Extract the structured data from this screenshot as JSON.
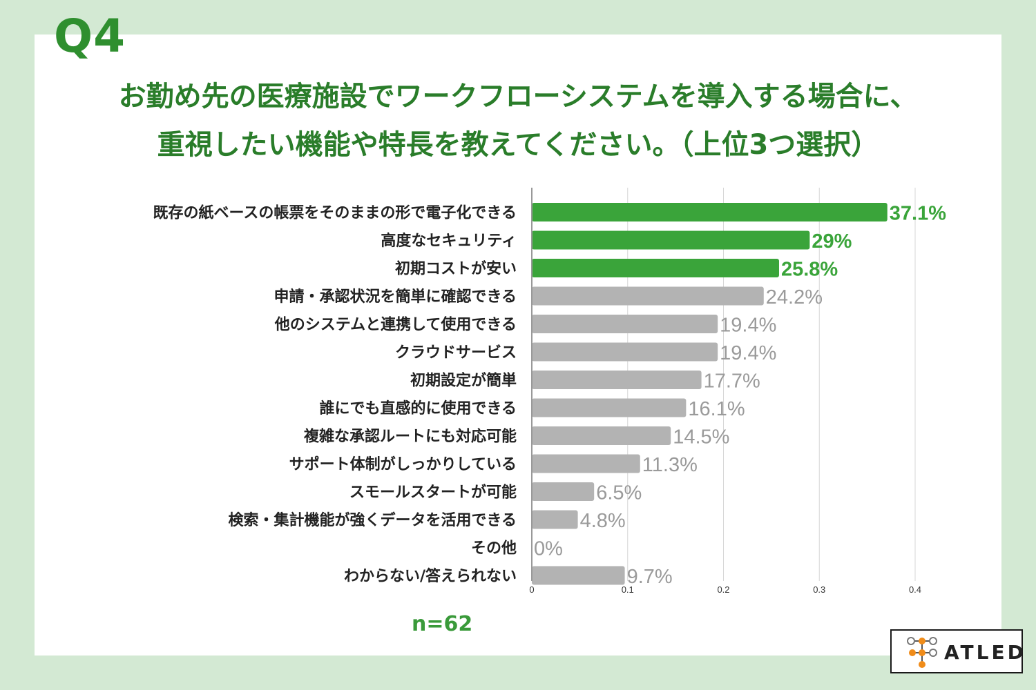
{
  "header": {
    "question": "Q4",
    "title_line1": "お勤め先の医療施設でワークフローシステムを導入する場合に、",
    "title_line2": "重視したい機能や特長を教えてください。（上位3つ選択）"
  },
  "sample": "n=62",
  "logo": {
    "text": "ATLED",
    "icon": "node-tree-icon"
  },
  "colors": {
    "highlight": "#3aa43a",
    "normal": "#b3b3b3",
    "highlight_label": "#3aa43a",
    "normal_label": "#9a9a9a",
    "title": "#2a7d2a",
    "frame": "#d3e9d3"
  },
  "chart_data": {
    "type": "bar",
    "orientation": "horizontal",
    "categories": [
      "既存の紙ベースの帳票をそのままの形で電子化できる",
      "高度なセキュリティ",
      "初期コストが安い",
      "申請・承認状況を簡単に確認できる",
      "他のシステムと連携して使用できる",
      "クラウドサービス",
      "初期設定が簡単",
      "誰にでも直感的に使用できる",
      "複雑な承認ルートにも対応可能",
      "サポート体制がしっかりしている",
      "スモールスタートが可能",
      "検索・集計機能が強くデータを活用できる",
      "その他",
      "わからない/答えられない"
    ],
    "values": [
      0.371,
      0.29,
      0.258,
      0.242,
      0.194,
      0.194,
      0.177,
      0.161,
      0.145,
      0.113,
      0.065,
      0.048,
      0,
      0.097
    ],
    "value_labels": [
      "37.1%",
      "29%",
      "25.8%",
      "24.2%",
      "19.4%",
      "19.4%",
      "17.7%",
      "16.1%",
      "14.5%",
      "11.3%",
      "6.5%",
      "4.8%",
      "0%",
      "9.7%"
    ],
    "highlighted": [
      true,
      true,
      true,
      false,
      false,
      false,
      false,
      false,
      false,
      false,
      false,
      false,
      false,
      false
    ],
    "xlim": [
      0,
      0.4
    ],
    "xticks": [
      0,
      0.1,
      0.2,
      0.3,
      0.4
    ],
    "xtick_labels": [
      "0",
      "0.1",
      "0.2",
      "0.3",
      "0.4"
    ],
    "grid": true
  }
}
